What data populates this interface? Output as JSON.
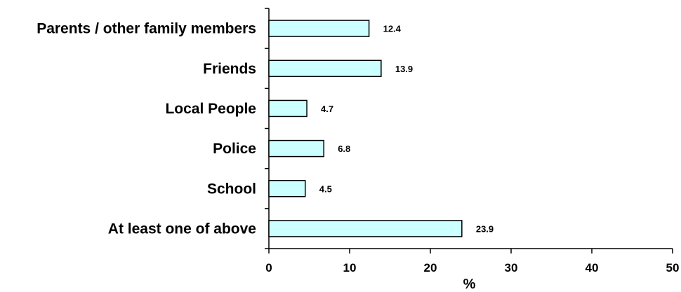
{
  "chart_data": {
    "type": "bar",
    "orientation": "horizontal",
    "categories": [
      "Parents / other family members",
      "Friends",
      "Local People",
      "Police",
      "School",
      "At least one of above"
    ],
    "values": [
      12.4,
      13.9,
      4.7,
      6.8,
      4.5,
      23.9
    ],
    "value_labels": [
      "12.4",
      "13.9",
      "4.7",
      "6.8",
      "4.5",
      "23.9"
    ],
    "xlabel": "%",
    "xlim": [
      0,
      50
    ],
    "xticks": [
      0,
      10,
      20,
      30,
      40,
      50
    ],
    "bar_color": "#ccffff",
    "bar_edge_color": "#000000",
    "grid": false,
    "legend": "none"
  }
}
